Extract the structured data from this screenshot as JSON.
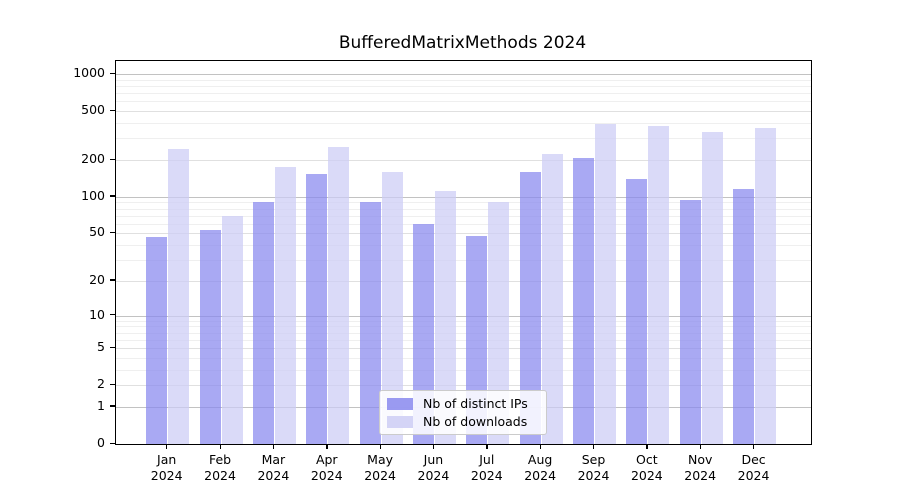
{
  "chart_data": {
    "type": "bar",
    "title": "BufferedMatrixMethods 2024",
    "categories": [
      "Jan",
      "Feb",
      "Mar",
      "Apr",
      "May",
      "Jun",
      "Jul",
      "Aug",
      "Sep",
      "Oct",
      "Nov",
      "Dec"
    ],
    "category_year": "2024",
    "series": [
      {
        "name": "Nb of distinct IPs",
        "color": "#8888ee",
        "values": [
          47,
          53,
          90,
          153,
          91,
          60,
          48,
          160,
          206,
          141,
          94,
          117
        ]
      },
      {
        "name": "Nb of downloads",
        "color": "#ccccf5",
        "values": [
          244,
          70,
          175,
          255,
          160,
          112,
          91,
          223,
          391,
          378,
          338,
          362
        ]
      }
    ],
    "y_axis": {
      "ticks": [
        0,
        1,
        2,
        5,
        10,
        20,
        50,
        100,
        200,
        500,
        1000
      ],
      "scale": "log10(value+1)",
      "max_tick": 1000
    },
    "xlabel": "",
    "ylabel": "",
    "grid": true,
    "legend_position": "lower-center-inside",
    "background_color": "#ffffff",
    "gridline_major_color": "#c2c2c2",
    "gridline_minor_color": "#efefef"
  }
}
